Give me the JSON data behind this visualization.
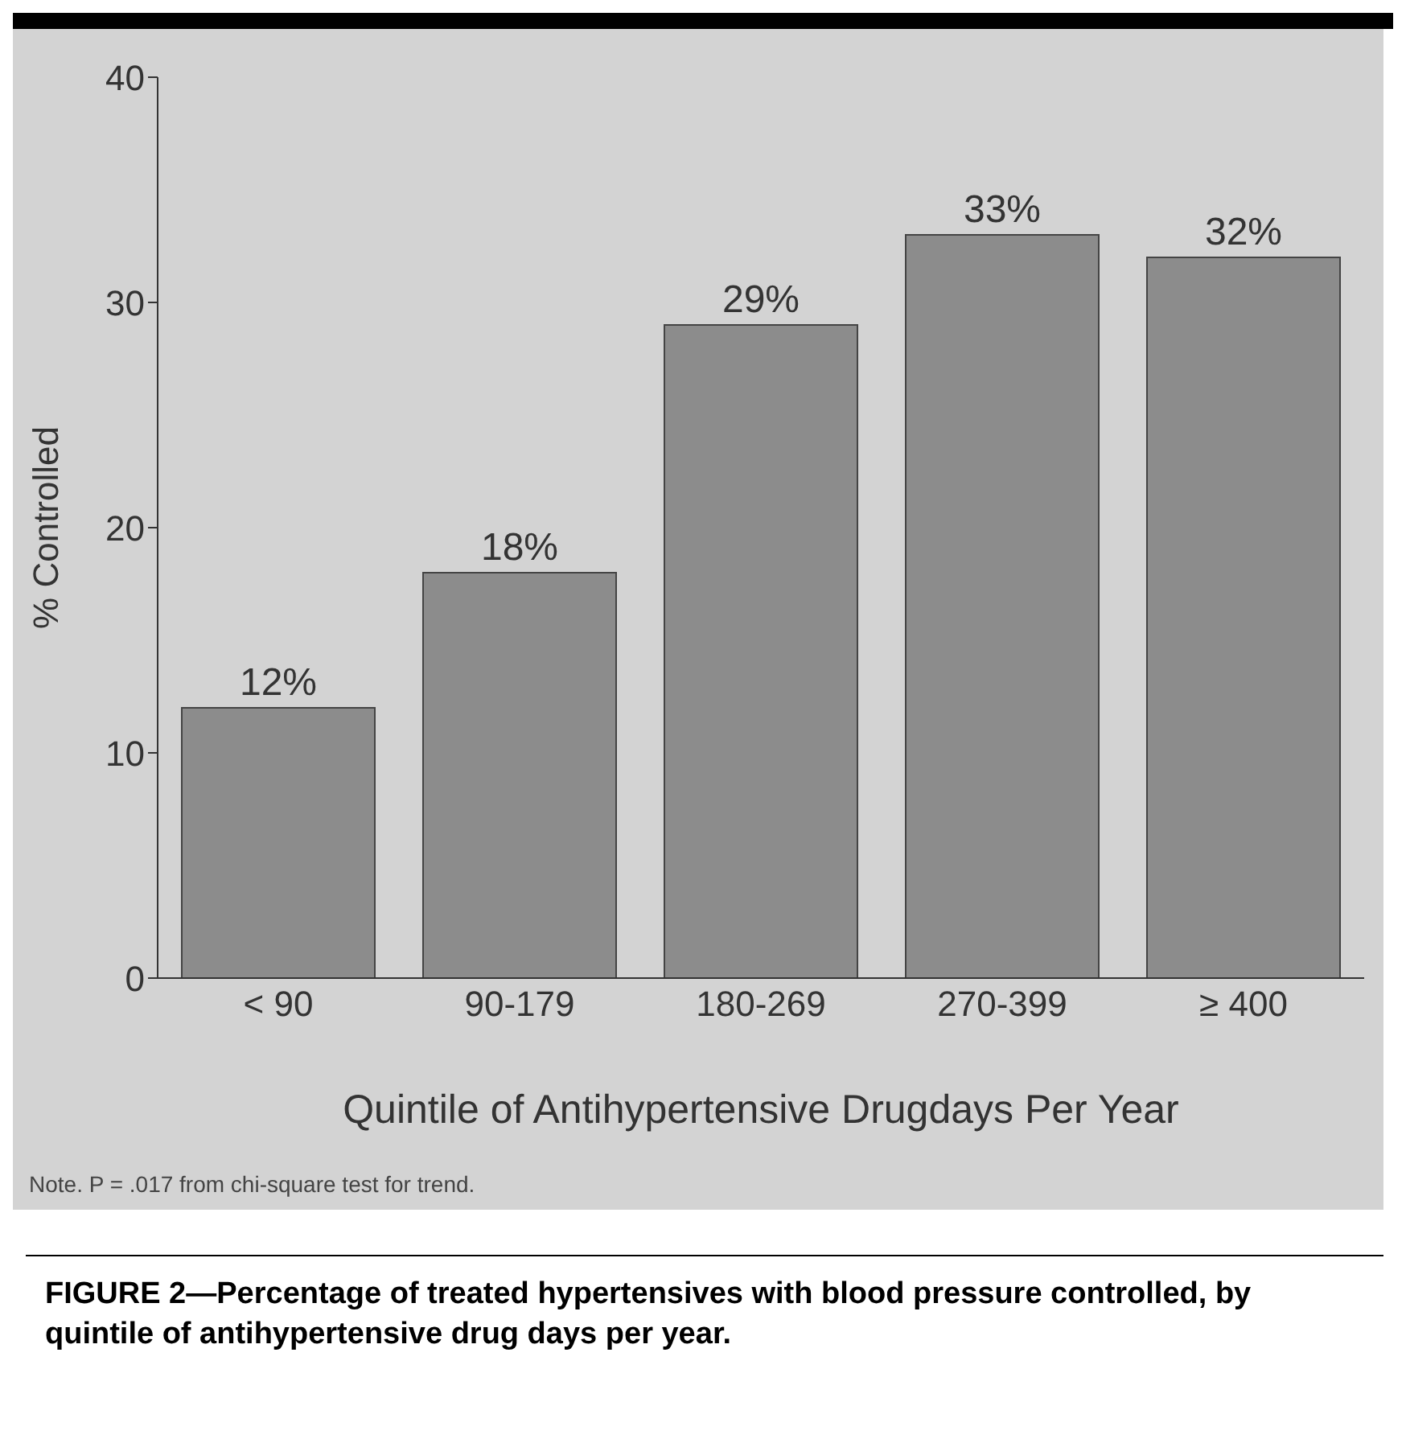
{
  "chart_data": {
    "type": "bar",
    "title": "FIGURE 2—Percentage of treated hypertensives with blood pressure controlled, by quintile of antihypertensive drug days per year.",
    "xlabel": "Quintile of Antihypertensive Drugdays Per Year",
    "ylabel": "% Controlled",
    "categories": [
      "< 90",
      "90-179",
      "180-269",
      "270-399",
      "≥ 400"
    ],
    "values": [
      12,
      18,
      29,
      33,
      32
    ],
    "value_labels": [
      "12%",
      "18%",
      "29%",
      "33%",
      "32%"
    ],
    "color": "#8c8c8c",
    "ylim": [
      0,
      40
    ],
    "yticks": [
      0,
      10,
      20,
      30,
      40
    ],
    "annotations": [
      "Note. P = .017 from chi-square test for trend."
    ]
  }
}
